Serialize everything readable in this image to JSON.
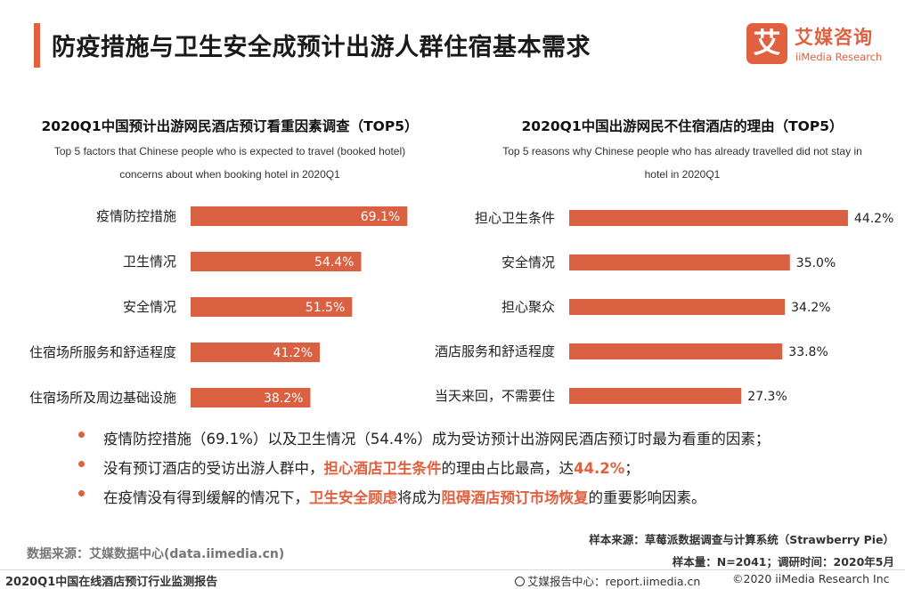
{
  "header": {
    "title": "防疫措施与卫生安全成预计出游人群住宿基本需求",
    "logo_mark": "艾",
    "logo_cn": "艾媒咨询",
    "logo_en": "iiMedia Research",
    "accent_color": "#e0603f"
  },
  "chart_data": [
    {
      "type": "bar",
      "orientation": "horizontal",
      "title": "2020Q1中国预计出游网民酒店预订看重因素调查（TOP5）",
      "subtitle_line1": "Top 5 factors that Chinese people who is expected to travel (booked hotel)",
      "subtitle_line2": "concerns about when booking hotel in 2020Q1",
      "categories": [
        "疫情防控措施",
        "卫生情况",
        "安全情况",
        "住宿场所服务和舒适程度",
        "住宿场所及周边基础设施"
      ],
      "values": [
        69.1,
        54.4,
        51.5,
        41.2,
        38.2
      ],
      "labels": [
        "69.1%",
        "54.4%",
        "51.5%",
        "41.2%",
        "38.2%"
      ],
      "label_position": "inside",
      "bar_color": "#d96040"
    },
    {
      "type": "bar",
      "orientation": "horizontal",
      "title": "2020Q1中国出游网民不住宿酒店的理由（TOP5）",
      "subtitle_line1": "Top 5 reasons why Chinese people who has already travelled did not stay in",
      "subtitle_line2": "hotel  in 2020Q1",
      "categories": [
        "担心卫生条件",
        "安全情况",
        "担心聚众",
        "酒店服务和舒适程度",
        "当天来回，不需要住"
      ],
      "values": [
        44.2,
        35.0,
        34.2,
        33.8,
        27.3
      ],
      "labels": [
        "44.2%",
        "35.0%",
        "34.2%",
        "33.8%",
        "27.3%"
      ],
      "label_position": "outside",
      "bar_color": "#d96040"
    }
  ],
  "bullets": [
    [
      {
        "t": "疫情防控措施（69.1%）以及卫生情况（54.4%）成为受访预计出游网民酒店预订时最为看重的因素；",
        "h": false
      }
    ],
    [
      {
        "t": "没有预订酒店的受访出游人群中，",
        "h": false
      },
      {
        "t": "担心酒店卫生条件",
        "h": true
      },
      {
        "t": "的理由占比最高，达",
        "h": false
      },
      {
        "t": "44.2%",
        "h": true
      },
      {
        "t": "；",
        "h": false
      }
    ],
    [
      {
        "t": "在疫情没有得到缓解的情况下，",
        "h": false
      },
      {
        "t": "卫生安全顾虑",
        "h": true
      },
      {
        "t": "将成为",
        "h": false
      },
      {
        "t": "阻碍酒店预订市场恢复",
        "h": true
      },
      {
        "t": "的重要影响因素。",
        "h": false
      }
    ]
  ],
  "source": {
    "data_source": "数据来源：艾媒数据中心(data.iimedia.cn)",
    "sample_source": "样本来源：草莓派数据调查与计算系统（Strawberry Pie）",
    "sample_size": "样本量：N=2041；调研时间：2020年5月"
  },
  "footer": {
    "report_name": "2020Q1中国在线酒店预订行业监测报告",
    "report_center": "艾媒报告中心：report.iimedia.cn",
    "copyright": "©2020  iiMedia Research  Inc"
  }
}
